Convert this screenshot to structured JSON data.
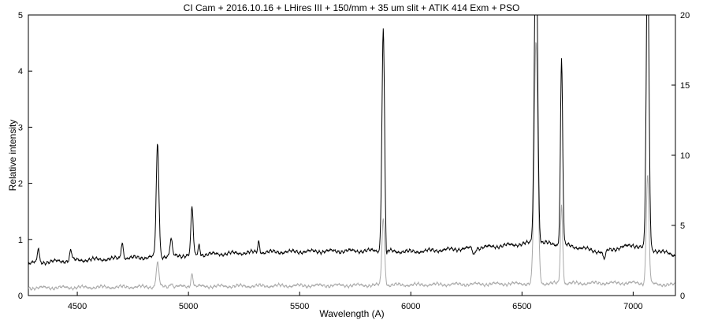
{
  "chart_data": {
    "type": "line",
    "title": "CI Cam + 2016.10.16 + LHires III + 150/mm + 35 um slit + ATIK 414 Exm + PSO",
    "xlabel": "Wavelength (A)",
    "ylabel": "Relative intensity",
    "xlim": [
      4280,
      7190
    ],
    "ylim_left": [
      0,
      5
    ],
    "ylim_right": [
      0,
      20
    ],
    "xticks": [
      4500,
      5000,
      5500,
      6000,
      6500,
      7000
    ],
    "yticks_left": [
      0,
      1,
      2,
      3,
      4,
      5
    ],
    "yticks_right": [
      0,
      5,
      10,
      15,
      20
    ],
    "grid": false,
    "series": [
      {
        "axis": "left",
        "color": "#000000",
        "baseline": [
          [
            4280,
            0.58
          ],
          [
            4500,
            0.63
          ],
          [
            4800,
            0.68
          ],
          [
            5000,
            0.72
          ],
          [
            5300,
            0.77
          ],
          [
            5600,
            0.79
          ],
          [
            5850,
            0.8
          ],
          [
            6000,
            0.78
          ],
          [
            6300,
            0.85
          ],
          [
            6500,
            0.92
          ],
          [
            6560,
            0.95
          ],
          [
            6700,
            0.9
          ],
          [
            6850,
            0.78
          ],
          [
            7000,
            0.9
          ],
          [
            7190,
            0.72
          ]
        ],
        "peaks": [
          {
            "x": 4325,
            "height": 0.25,
            "width": 4
          },
          {
            "x": 4471,
            "height": 0.18,
            "width": 5
          },
          {
            "x": 4702,
            "height": 0.28,
            "width": 5
          },
          {
            "x": 4861,
            "height": 2.0,
            "width": 6
          },
          {
            "x": 4922,
            "height": 0.3,
            "width": 5
          },
          {
            "x": 5016,
            "height": 0.85,
            "width": 5
          },
          {
            "x": 5048,
            "height": 0.18,
            "width": 4
          },
          {
            "x": 5316,
            "height": 0.2,
            "width": 4
          },
          {
            "x": 5876,
            "height": 3.95,
            "width": 6
          },
          {
            "x": 6563,
            "height": 5.8,
            "width": 7
          },
          {
            "x": 6678,
            "height": 3.3,
            "width": 5
          },
          {
            "x": 7065,
            "height": 5.5,
            "width": 6
          }
        ],
        "dips": [
          {
            "x": 5890,
            "depth": 0.25,
            "width": 3
          },
          {
            "x": 6284,
            "depth": 0.12,
            "width": 5
          },
          {
            "x": 6870,
            "depth": 0.15,
            "width": 6
          }
        ]
      },
      {
        "axis": "right",
        "color": "#a8a8a8",
        "baseline": [
          [
            4280,
            0.55
          ],
          [
            5000,
            0.65
          ],
          [
            5900,
            0.75
          ],
          [
            6500,
            0.85
          ],
          [
            7000,
            0.9
          ],
          [
            7190,
            0.75
          ]
        ],
        "peaks": [
          {
            "x": 4861,
            "height": 1.7,
            "width": 6
          },
          {
            "x": 4922,
            "height": 0.3,
            "width": 5
          },
          {
            "x": 5016,
            "height": 0.9,
            "width": 5
          },
          {
            "x": 5876,
            "height": 4.8,
            "width": 6
          },
          {
            "x": 6563,
            "height": 17.2,
            "width": 8
          },
          {
            "x": 6678,
            "height": 5.6,
            "width": 5
          },
          {
            "x": 7065,
            "height": 7.8,
            "width": 6
          }
        ],
        "dips": []
      }
    ]
  }
}
